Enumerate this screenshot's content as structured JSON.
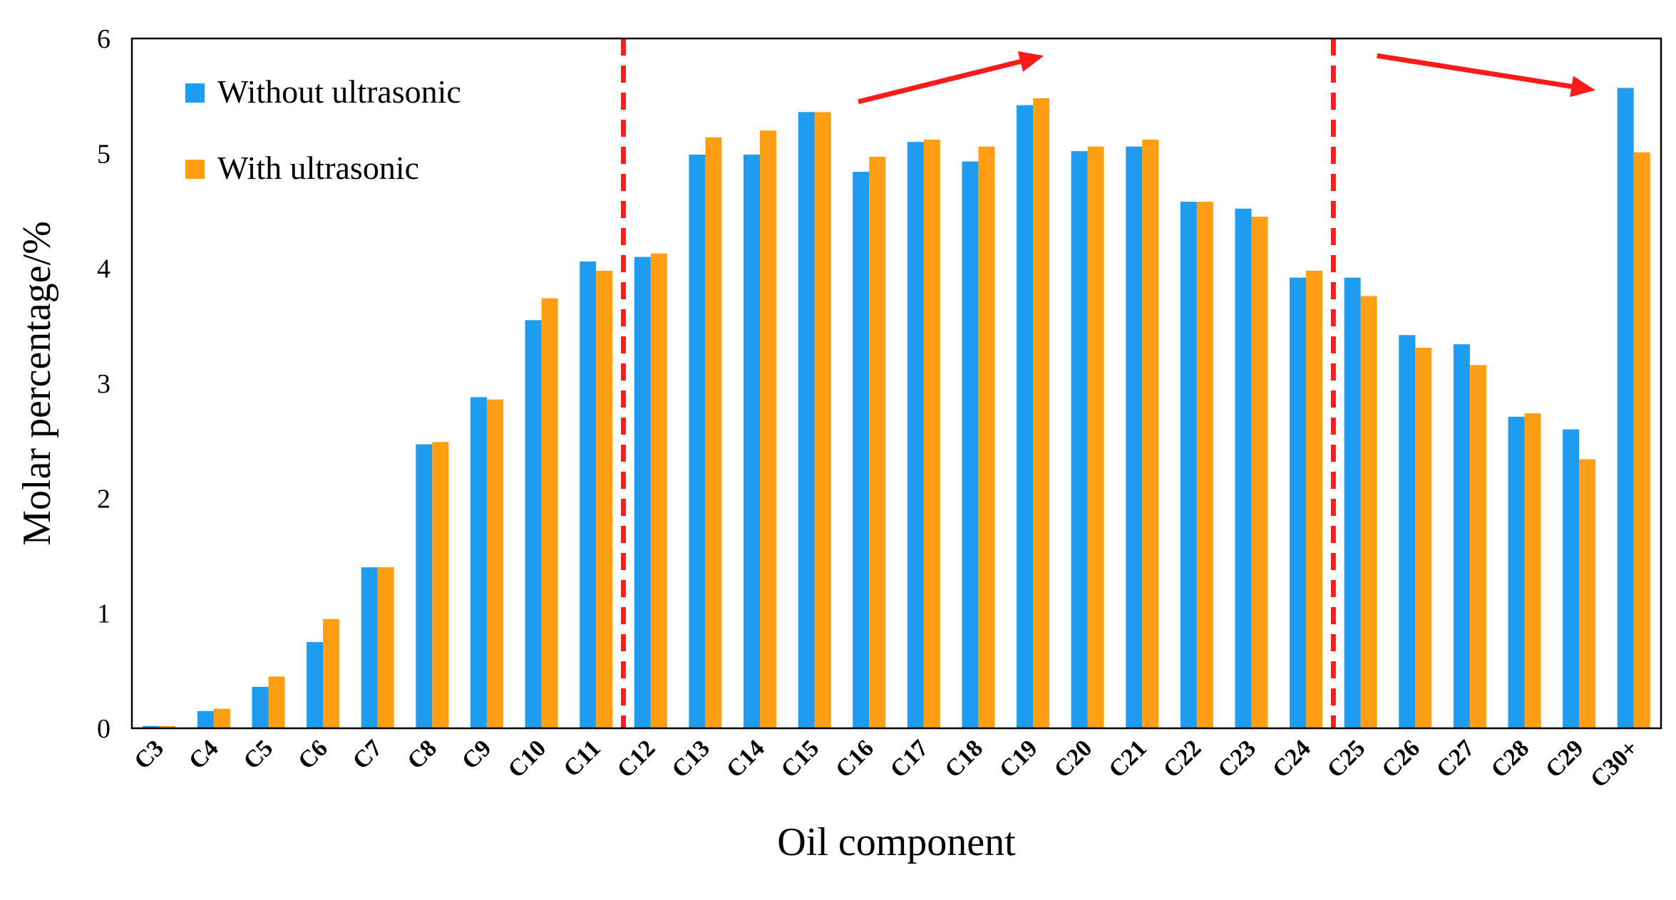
{
  "chart_data": {
    "type": "bar",
    "title": "",
    "xlabel": "Oil component",
    "ylabel": "Molar percentage/%",
    "ylim": [
      0,
      6
    ],
    "yticks": [
      "0",
      "1",
      "2",
      "3",
      "4",
      "5",
      "6"
    ],
    "grid": false,
    "legend_position": "top-left",
    "categories": [
      "C3",
      "C4",
      "C5",
      "C6",
      "C7",
      "C8",
      "C9",
      "C10",
      "C11",
      "C12",
      "C13",
      "C14",
      "C15",
      "C16",
      "C17",
      "C18",
      "C19",
      "C20",
      "C21",
      "C22",
      "C23",
      "C24",
      "C25",
      "C26",
      "C27",
      "C28",
      "C29",
      "C30+"
    ],
    "series": [
      {
        "name": "Without ultrasonic",
        "color": "#1E9CF0",
        "values": [
          0.02,
          0.15,
          0.36,
          0.75,
          1.4,
          2.47,
          2.88,
          3.55,
          4.06,
          4.1,
          4.99,
          4.99,
          5.36,
          4.84,
          5.1,
          4.93,
          5.42,
          5.02,
          5.06,
          4.58,
          4.52,
          3.92,
          3.92,
          3.42,
          3.34,
          2.71,
          2.6,
          5.57
        ]
      },
      {
        "name": "With ultrasonic",
        "color": "#FF9E12",
        "values": [
          0.02,
          0.17,
          0.45,
          0.95,
          1.4,
          2.49,
          2.86,
          3.74,
          3.98,
          4.13,
          5.14,
          5.2,
          5.36,
          4.97,
          5.12,
          5.06,
          5.48,
          5.06,
          5.12,
          4.58,
          4.45,
          3.98,
          3.76,
          3.31,
          3.16,
          2.74,
          2.34,
          5.01
        ]
      }
    ],
    "annotations": {
      "divider_color": "#FF1A1A",
      "dividers_between": [
        [
          "C11",
          "C12"
        ],
        [
          "C24",
          "C25"
        ]
      ],
      "arrows": [
        {
          "from": [
            13.3,
            5.45
          ],
          "to": [
            16.7,
            5.85
          ]
        },
        {
          "from": [
            22.8,
            5.85
          ],
          "to": [
            26.8,
            5.55
          ]
        }
      ]
    }
  }
}
